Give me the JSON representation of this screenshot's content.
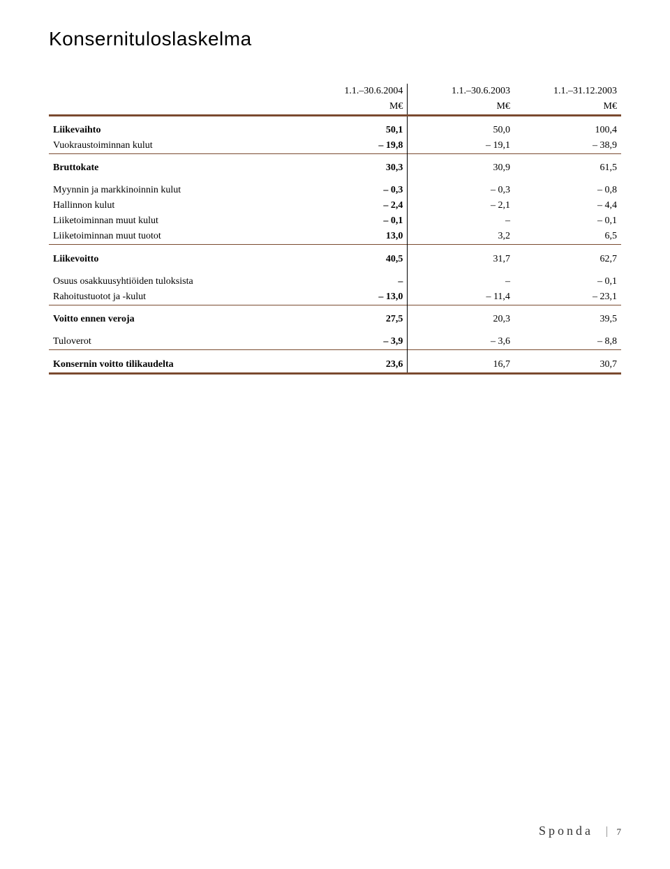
{
  "title": "Konsernituloslaskelma",
  "columns": {
    "c1_line1": "1.1.–30.6.2004",
    "c1_line2": "M€",
    "c2_line1": "1.1.–30.6.2003",
    "c2_line2": "M€",
    "c3_line1": "1.1.–31.12.2003",
    "c3_line2": "M€"
  },
  "rows": {
    "liikevaihto": {
      "label": "Liikevaihto",
      "c1": "50,1",
      "c2": "50,0",
      "c3": "100,4"
    },
    "vuokraus": {
      "label": "Vuokraustoiminnan kulut",
      "c1": "– 19,8",
      "c2": "– 19,1",
      "c3": "– 38,9"
    },
    "bruttokate": {
      "label": "Bruttokate",
      "c1": "30,3",
      "c2": "30,9",
      "c3": "61,5"
    },
    "myynti": {
      "label": "Myynnin ja markkinoinnin kulut",
      "c1": "– 0,3",
      "c2": "– 0,3",
      "c3": "– 0,8"
    },
    "hallinto": {
      "label": "Hallinnon kulut",
      "c1": "– 2,4",
      "c2": "– 2,1",
      "c3": "– 4,4"
    },
    "muut_kulut": {
      "label": "Liiketoiminnan muut kulut",
      "c1": "– 0,1",
      "c2": "–",
      "c3": "– 0,1"
    },
    "muut_tuotot": {
      "label": "Liiketoiminnan muut tuotot",
      "c1": "13,0",
      "c2": "3,2",
      "c3": "6,5"
    },
    "liikevoitto": {
      "label": "Liikevoitto",
      "c1": "40,5",
      "c2": "31,7",
      "c3": "62,7"
    },
    "osakkuus": {
      "label": "Osuus osakkuusyhtiöiden tuloksista",
      "c1": "–",
      "c2": "–",
      "c3": "– 0,1"
    },
    "rahoitus": {
      "label": "Rahoitustuotot ja -kulut",
      "c1": "– 13,0",
      "c2": "– 11,4",
      "c3": "– 23,1"
    },
    "ennen_veroja": {
      "label": "Voitto ennen veroja",
      "c1": "27,5",
      "c2": "20,3",
      "c3": "39,5"
    },
    "tuloverot": {
      "label": "Tuloverot",
      "c1": "– 3,9",
      "c2": "– 3,6",
      "c3": "– 8,8"
    },
    "tilikaudelta": {
      "label": "Konsernin voitto tilikaudelta",
      "c1": "23,6",
      "c2": "16,7",
      "c3": "30,7"
    }
  },
  "footer": {
    "brand": "Sponda",
    "page": "7"
  },
  "colors": {
    "rule": "#7a4a2f",
    "text": "#000000",
    "bg": "#ffffff"
  }
}
